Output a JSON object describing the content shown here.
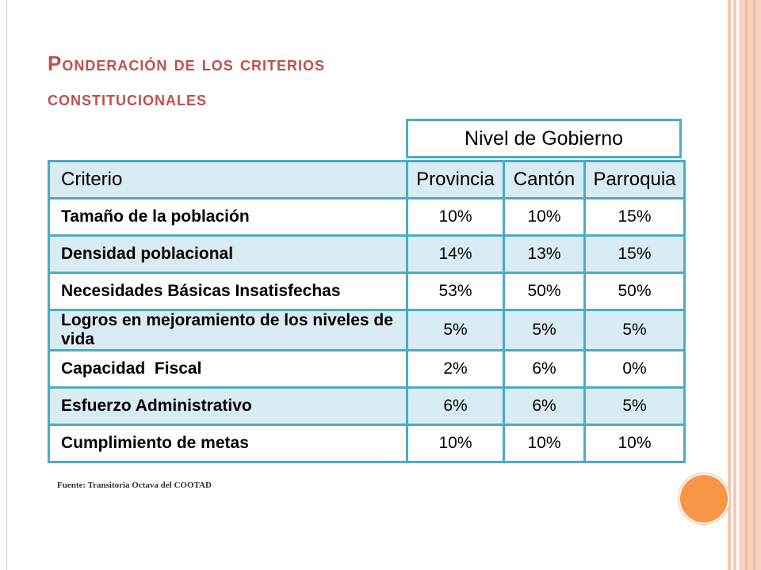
{
  "title_line1": "Ponderación de los criterios",
  "title_line2": "constitucionales",
  "nivel_label": "Nivel de Gobierno",
  "headers": [
    "Criterio",
    "Provincia",
    "Cantón",
    "Parroquia"
  ],
  "rows": [
    {
      "criterio": "Tamaño de la población",
      "provincia": "10%",
      "canton": "10%",
      "parroquia": "15%"
    },
    {
      "criterio": "Densidad poblacional",
      "provincia": "14%",
      "canton": "13%",
      "parroquia": "15%"
    },
    {
      "criterio": "Necesidades Básicas Insatisfechas",
      "provincia": "53%",
      "canton": "50%",
      "parroquia": "50%"
    },
    {
      "criterio": "Logros en mejoramiento de los niveles de vida",
      "provincia": "5%",
      "canton": "5%",
      "parroquia": "5%"
    },
    {
      "criterio": "Capacidad  Fiscal",
      "provincia": "2%",
      "canton": "6%",
      "parroquia": "0%"
    },
    {
      "criterio": "Esfuerzo Administrativo",
      "provincia": "6%",
      "canton": "6%",
      "parroquia": "5%"
    },
    {
      "criterio": "Cumplimiento de metas",
      "provincia": "10%",
      "canton": "10%",
      "parroquia": "10%"
    }
  ],
  "source": "Fuente: Transitoria Octava del COOTAD",
  "colors": {
    "title": "#c0504d",
    "border": "#4bacc6",
    "row_fill": "#d9ebf3",
    "accent_circle": "#f79646",
    "stripes": "#f5c7b5"
  }
}
